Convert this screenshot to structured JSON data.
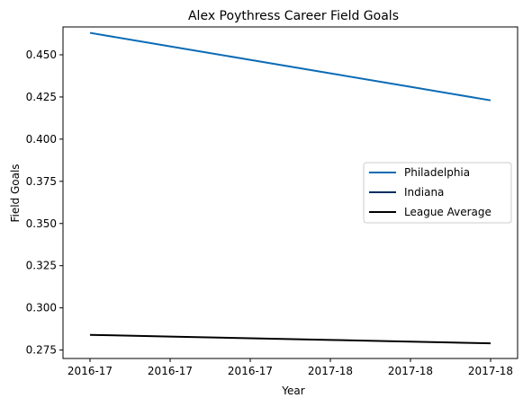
{
  "chart_data": {
    "type": "line",
    "title": "Alex Poythress Career Field Goals",
    "xlabel": "Year",
    "ylabel": "Field Goals",
    "x": [
      "2016-17",
      "2016-17",
      "2016-17",
      "2017-18",
      "2017-18",
      "2017-18"
    ],
    "ylim": [
      0.27,
      0.4665
    ],
    "yticks": [
      0.275,
      0.3,
      0.325,
      0.35,
      0.375,
      0.4,
      0.425,
      0.45
    ],
    "ytick_labels": [
      "0.275",
      "0.300",
      "0.325",
      "0.350",
      "0.375",
      "0.400",
      "0.425",
      "0.450"
    ],
    "series": [
      {
        "name": "Philadelphia",
        "color": "#0b6bb5",
        "values": [
          0.463,
          0.455,
          0.447,
          0.439,
          0.431,
          0.423
        ]
      },
      {
        "name": "Indiana",
        "color": "#002d62",
        "values": [
          null,
          null,
          null,
          null,
          null,
          null
        ]
      },
      {
        "name": "League Average",
        "color": "#000000",
        "values": [
          0.284,
          0.283,
          0.282,
          0.281,
          0.28,
          0.279
        ]
      }
    ],
    "legend_position": "center-right",
    "grid": false
  }
}
